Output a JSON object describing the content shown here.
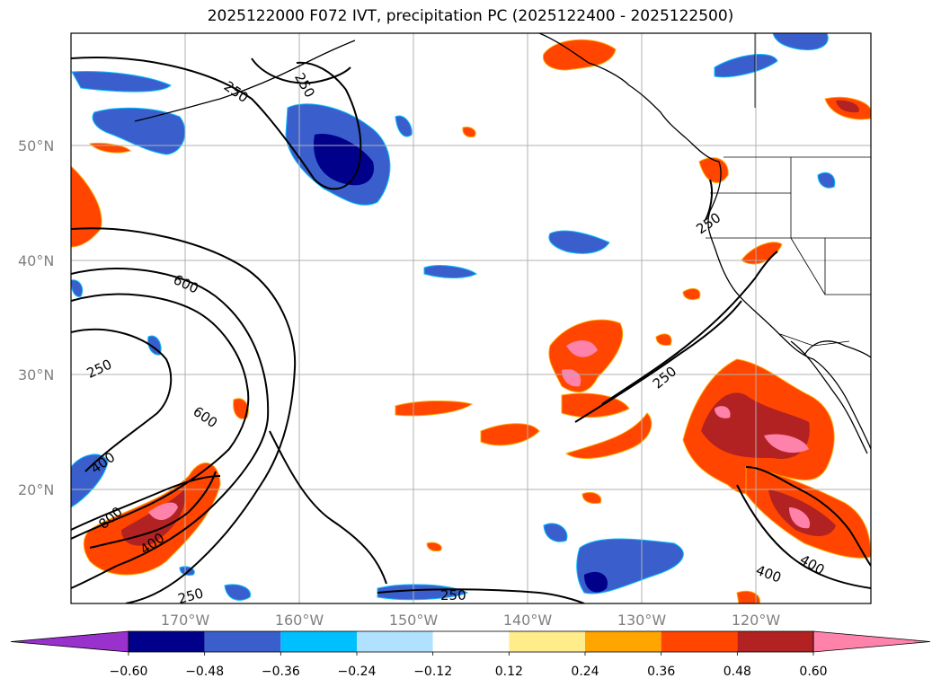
{
  "title": "2025122000 F072 IVT, precipitation PC (2025122400 - 2025122500)",
  "axes": {
    "lat_labels": [
      "50°N",
      "40°N",
      "30°N",
      "20°N"
    ],
    "lon_labels": [
      "170°W",
      "160°W",
      "150°W",
      "140°W",
      "130°W",
      "120°W"
    ]
  },
  "colorbar": {
    "ticks": [
      "−0.60",
      "−0.48",
      "−0.36",
      "−0.24",
      "−0.12",
      "0.12",
      "0.24",
      "0.36",
      "0.48",
      "0.60"
    ],
    "colors": [
      "#9932cc",
      "#00008b",
      "#3a5fcd",
      "#00bfff",
      "#b0e2ff",
      "#ffffff",
      "#ffec8b",
      "#ffa500",
      "#ff4500",
      "#b22222",
      "#ff82ab"
    ]
  },
  "contour_labels": [
    "250",
    "250",
    "250",
    "250",
    "250",
    "250",
    "400",
    "400",
    "400",
    "600",
    "600",
    "800",
    "250",
    "400"
  ],
  "colors": {
    "contour": "#000000",
    "grid": "#b0b0b0",
    "coast": "#000000"
  }
}
